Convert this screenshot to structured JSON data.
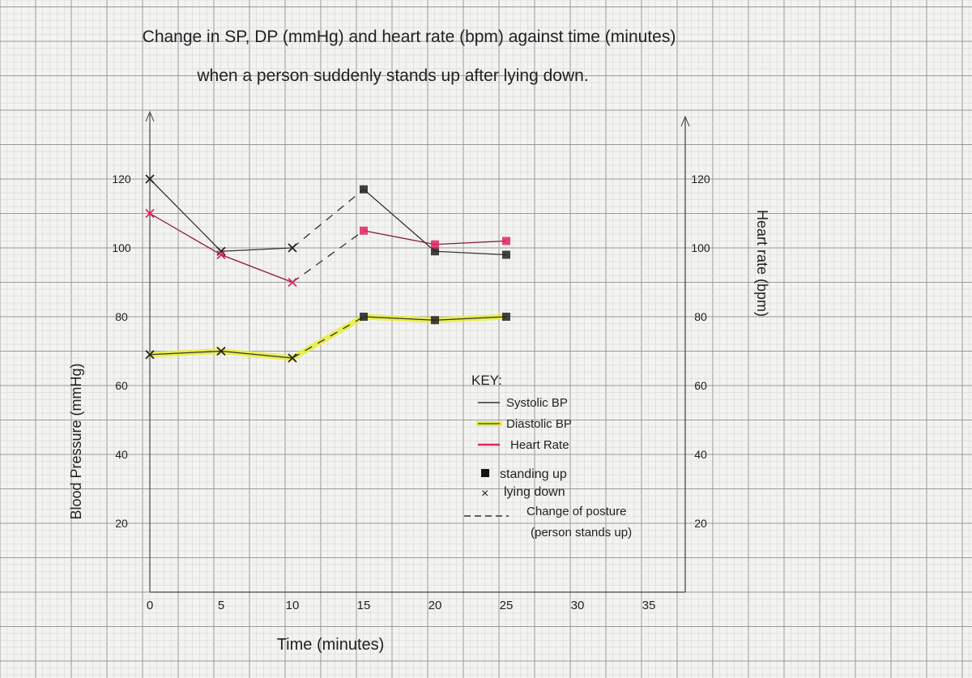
{
  "chart_data": {
    "type": "line",
    "title": "Change in SP, DP (mmHg) and heart rate (bpm) against time (minutes)",
    "subtitle": "when a person suddenly stands up after lying down.",
    "xlabel": "Time (minutes)",
    "ylabel": "Blood Pressure (mmHg)",
    "y2label": "Heart rate (bpm)",
    "xlim": [
      0,
      35
    ],
    "ylim": [
      0,
      130
    ],
    "x_ticks": [
      "0",
      "5",
      "10",
      "15",
      "20",
      "25",
      "30",
      "35"
    ],
    "y_ticks": [
      "20",
      "40",
      "60",
      "80",
      "100",
      "120"
    ],
    "y2_ticks": [
      "20",
      "40",
      "60",
      "80",
      "100",
      "120"
    ],
    "grid": true,
    "x": [
      0,
      5,
      10,
      15,
      20,
      25
    ],
    "series": [
      {
        "name": "Systolic BP",
        "axis": "left",
        "color": "#333333",
        "values": [
          120,
          99,
          100,
          117,
          99,
          98
        ]
      },
      {
        "name": "Diastolic BP",
        "axis": "left",
        "color": "#333333",
        "highlight": "#e6ef3a",
        "values": [
          69,
          70,
          68,
          80,
          79,
          80
        ]
      },
      {
        "name": "Heart Rate",
        "axis": "right",
        "color": "#8a1a3a",
        "marker_color": "#e0245e",
        "values": [
          110,
          98,
          90,
          105,
          101,
          102
        ]
      }
    ],
    "posture": [
      "lying",
      "lying",
      "lying",
      "standing",
      "standing",
      "standing"
    ],
    "posture_change": {
      "from": 10,
      "to": 15
    },
    "legend": {
      "placement": "center-right",
      "title": "KEY:",
      "series": [
        "Systolic BP",
        "Diastolic BP",
        "Heart Rate"
      ],
      "markers": [
        {
          "symbol": "square",
          "label": "standing up"
        },
        {
          "symbol": "x",
          "label": "lying down"
        }
      ],
      "dashed": [
        "Change of posture",
        "(person stands up)"
      ]
    }
  }
}
